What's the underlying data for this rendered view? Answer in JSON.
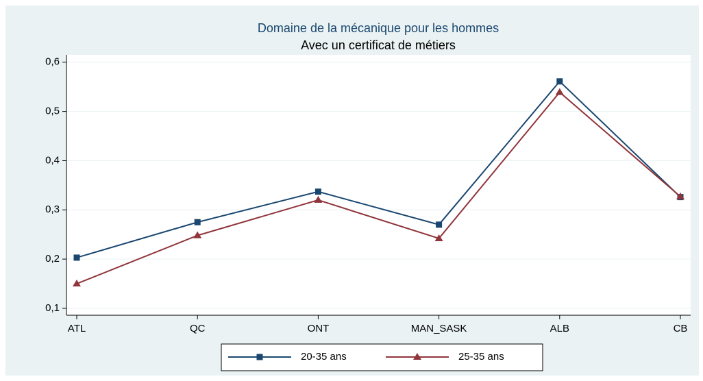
{
  "chart_data": {
    "type": "line",
    "title": "Domaine de la mécanique pour les hommes",
    "subtitle": "Avec un certificat de métiers",
    "categories": [
      "ATL",
      "QC",
      "ONT",
      "MAN_SASK",
      "ALB",
      "CB"
    ],
    "series": [
      {
        "name": "20-35 ans",
        "color": "#1a476f",
        "marker": "square",
        "values": [
          0.203,
          0.275,
          0.337,
          0.27,
          0.561,
          0.326
        ]
      },
      {
        "name": "25-35 ans",
        "color": "#90353b",
        "marker": "triangle",
        "values": [
          0.15,
          0.248,
          0.32,
          0.242,
          0.539,
          0.327
        ]
      }
    ],
    "ylim": [
      0.086,
      0.615
    ],
    "yticks": [
      {
        "value": 0.1,
        "label": "0,1"
      },
      {
        "value": 0.2,
        "label": "0,2"
      },
      {
        "value": 0.3,
        "label": "0,3"
      },
      {
        "value": 0.4,
        "label": "0,4"
      },
      {
        "value": 0.5,
        "label": "0,5"
      },
      {
        "value": 0.6,
        "label": "0,6"
      }
    ],
    "grid": true,
    "legend": "bottom"
  }
}
